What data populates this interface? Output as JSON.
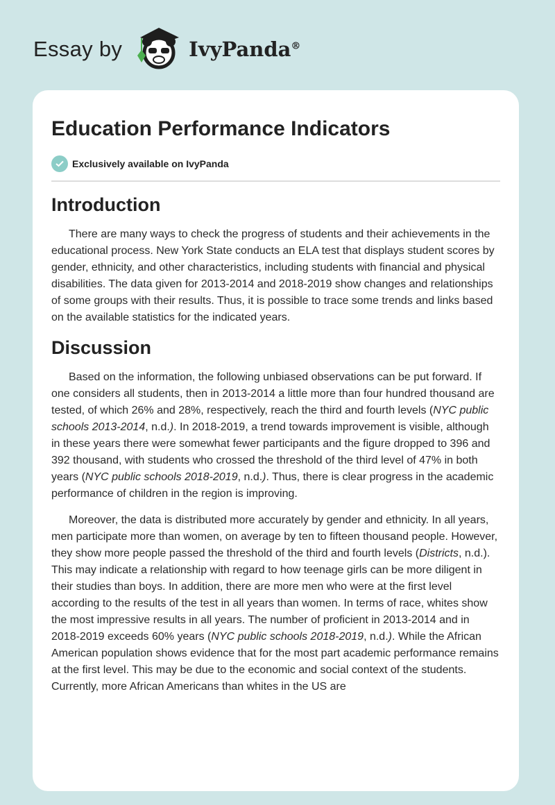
{
  "header": {
    "essay_by": "Essay by",
    "brand": "IvyPanda",
    "reg": "®"
  },
  "title": "Education Performance Indicators",
  "badge": "Exclusively available on IvyPanda",
  "sections": [
    {
      "heading": "Introduction",
      "paragraphs": [
        [
          "There are many ways to check the progress of students and their achievements in the educational process. New York State conducts an ELA test that displays student scores by gender, ethnicity, and other characteristics, including students with financial and physical disabilities. The data given for 2013-2014 and 2018-2019 show changes and relationships of some groups with their results. Thus, it is possible to trace some trends and links based on the available statistics for the indicated years."
        ]
      ]
    },
    {
      "heading": "Discussion",
      "paragraphs": [
        [
          "Based on the information, the following unbiased observations can be put forward. If one considers all students, then in 2013-2014 a little more than four hundred thousand are tested, of which 26% and 28%, respectively, reach the third and fourth levels (",
          "NYC public schools 2013-2014",
          ", n.d.",
          ")",
          ". In 2018-2019, a trend towards improvement is visible, although in these years there were somewhat fewer participants and the figure dropped to 396 and 392 thousand, with students who crossed the threshold of the third level of 47% in both years (",
          "NYC public schools 2018-2019",
          ", n.d.",
          ")",
          ". Thus, there is clear progress in the academic performance of children in the region is improving."
        ],
        [
          "Moreover, the data is distributed more accurately by gender and ethnicity. In all years, men participate more than women, on average by ten to fifteen thousand people. However, they show more people passed the threshold of the third and fourth levels (",
          "Districts",
          ", n.d.). This may indicate a relationship with regard to how teenage girls can be more diligent in their studies than boys. In addition, there are more men who were at the first level according to the results of the test in all years than women. In terms of race, whites show the most impressive results in all years. The number of proficient in 2013-2014 and in 2018-2019 exceeds 60% years (",
          "NYC public schools 2018-2019",
          ", n.d.",
          ")",
          ". While the African American population shows evidence that for the most part academic performance remains at the first level. This may be due to the economic and social context of the students. Currently, more African Americans than whites in the US are"
        ]
      ]
    }
  ]
}
